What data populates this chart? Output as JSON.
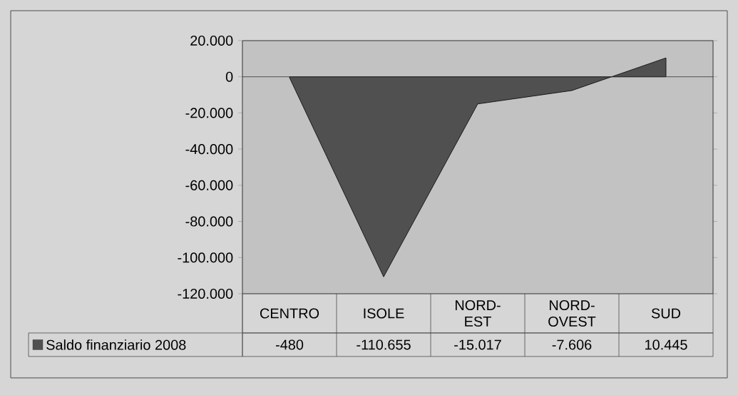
{
  "chart_data": {
    "type": "area",
    "categories": [
      "CENTRO",
      "ISOLE",
      "NORD-EST",
      "NORD-OVEST",
      "SUD"
    ],
    "series": [
      {
        "name": "Saldo finanziario 2008",
        "color": "#505050",
        "values": [
          -480,
          -110655,
          -15017,
          -7606,
          10445
        ],
        "value_labels": [
          "-480",
          "-110.655",
          "-15.017",
          "-7.606",
          "10.445"
        ]
      }
    ],
    "ylim": [
      -120000,
      20000
    ],
    "yticks": [
      {
        "value": 20000,
        "label": "20.000"
      },
      0,
      {
        "value": -20000,
        "label": "-20.000"
      },
      {
        "value": -40000,
        "label": "-40.000"
      },
      {
        "value": -60000,
        "label": "-60.000"
      },
      {
        "value": -80000,
        "label": "-80.000"
      },
      {
        "value": -100000,
        "label": "-100.000"
      },
      {
        "value": -120000,
        "label": "-120.000"
      }
    ],
    "legend": "bottom"
  }
}
